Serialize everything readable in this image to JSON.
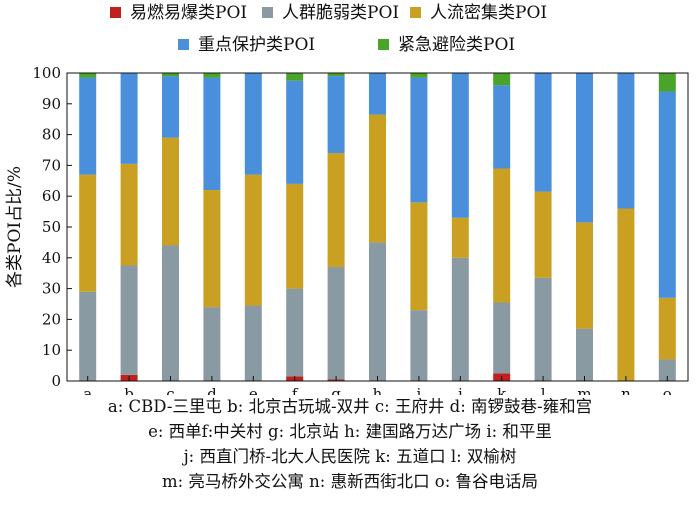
{
  "chart_data": {
    "type": "bar",
    "stacked": true,
    "ylabel": "各类POI占比/%",
    "ylim": [
      0,
      100
    ],
    "yticks": [
      0,
      10,
      20,
      30,
      40,
      50,
      60,
      70,
      80,
      90,
      100
    ],
    "categories": [
      "a",
      "b",
      "c",
      "d",
      "e",
      "f",
      "g",
      "h",
      "i",
      "j",
      "k",
      "l",
      "m",
      "n",
      "o"
    ],
    "series": [
      {
        "name": "易燃易爆类POI",
        "color": "#c0201e",
        "values": [
          0,
          2,
          0,
          0,
          0,
          1.5,
          0.5,
          0,
          0,
          0,
          2.5,
          0,
          0,
          0,
          0
        ]
      },
      {
        "name": "人群脆弱类POI",
        "color": "#8a9aa2",
        "values": [
          29,
          35.5,
          44,
          24,
          24.5,
          28.5,
          36.5,
          45,
          23,
          40,
          23,
          33.5,
          17,
          0,
          7
        ]
      },
      {
        "name": "人流密集类POI",
        "color": "#c9a021",
        "values": [
          38,
          33,
          35,
          38,
          42.5,
          34,
          37,
          41.5,
          35,
          13,
          43.5,
          28,
          34.5,
          56,
          20
        ]
      },
      {
        "name": "重点保护类POI",
        "color": "#4a8fdc",
        "values": [
          31.5,
          29.5,
          20,
          36.5,
          33,
          33.5,
          25,
          13.5,
          40.5,
          47,
          27,
          38.5,
          48.5,
          44,
          67
        ]
      },
      {
        "name": "紧急避险类POI",
        "color": "#4aa42a",
        "values": [
          1.5,
          0,
          1,
          1.5,
          0,
          2.5,
          1,
          0,
          1.5,
          0,
          4,
          0,
          0,
          0,
          6
        ]
      }
    ],
    "legend_position": "top"
  },
  "caption": {
    "lines": [
      "a: CBD-三里屯 b: 北京古玩城-双井 c: 王府井 d: 南锣鼓巷-雍和宫",
      "e: 西单f:中关村 g: 北京站 h: 建国路万达广场 i: 和平里",
      "j: 西直门桥-北大人民医院 k: 五道口 l: 双榆树",
      "m: 亮马桥外交公寓 n: 惠新西街北口 o: 鲁谷电话局"
    ]
  }
}
